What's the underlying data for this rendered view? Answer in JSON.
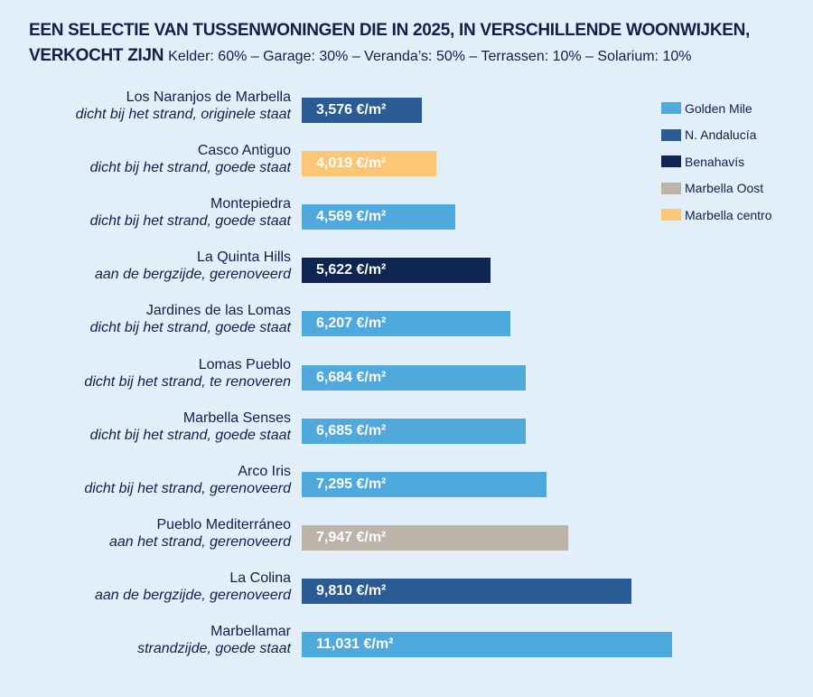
{
  "chart_data": {
    "type": "bar",
    "orientation": "horizontal",
    "title": "EEN SELECTIE VAN TUSSENWONINGEN DIE IN 2025, IN VERSCHILLENDE WOONWIJKEN, VERKOCHT ZIJN",
    "subtitle": "Kelder: 60% – Garage: 30% – Veranda’s: 50% – Terrassen: 10% – Solarium: 10%",
    "legend_position": "top-right",
    "grid": false,
    "legend": [
      {
        "name": "Golden Mile",
        "color": "#4fa9dc"
      },
      {
        "name": "N. Andalucía",
        "color": "#2a5b94"
      },
      {
        "name": "Benahavís",
        "color": "#0d2550"
      },
      {
        "name": "Marbella Oost",
        "color": "#bcb4a9"
      },
      {
        "name": "Marbella centro",
        "color": "#fdc674"
      }
    ],
    "bars": [
      {
        "name": "Los Naranjos de Marbella",
        "desc": "dicht bij het strand, originele staat",
        "value": 3576,
        "label": "3,576 €/m²",
        "area": "N. Andalucía"
      },
      {
        "name": "Casco Antiguo",
        "desc": "dicht bij het strand, goede staat",
        "value": 4019,
        "label": "4,019 €/m²",
        "area": "Marbella centro"
      },
      {
        "name": "Montepiedra",
        "desc": "dicht bij het strand, goede staat",
        "value": 4569,
        "label": "4,569 €/m²",
        "area": "Golden Mile"
      },
      {
        "name": "La Quinta Hills",
        "desc": "aan de bergzijde, gerenoveerd",
        "value": 5622,
        "label": "5,622 €/m²",
        "area": "Benahavís"
      },
      {
        "name": "Jardines de las Lomas",
        "desc": "dicht bij het strand, goede staat",
        "value": 6207,
        "label": "6,207 €/m²",
        "area": "Golden Mile"
      },
      {
        "name": "Lomas Pueblo",
        "desc": "dicht bij het strand, te renoveren",
        "value": 6684,
        "label": "6,684 €/m²",
        "area": "Golden Mile"
      },
      {
        "name": "Marbella Senses",
        "desc": "dicht bij het strand, goede staat",
        "value": 6685,
        "label": "6,685 €/m²",
        "area": "Golden Mile"
      },
      {
        "name": "Arco Iris",
        "desc": "dicht bij het strand, gerenoveerd",
        "value": 7295,
        "label": "7,295 €/m²",
        "area": "Golden Mile"
      },
      {
        "name": "Pueblo Mediterráneo",
        "desc": "aan het strand, gerenoveerd",
        "value": 7947,
        "label": "7,947 €/m²",
        "area": "Marbella Oost"
      },
      {
        "name": "La Colina",
        "desc": "aan de bergzijde, gerenoveerd",
        "value": 9810,
        "label": "9,810 €/m²",
        "area": "N. Andalucía"
      },
      {
        "name": "Marbellamar",
        "desc": "strandzijde, goede staat",
        "value": 11031,
        "label": "11,031 €/m²",
        "area": "Golden Mile"
      }
    ]
  }
}
